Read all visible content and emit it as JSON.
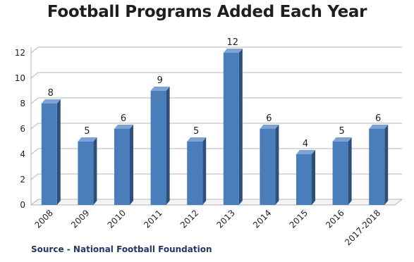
{
  "title": "Football Programs Added Each Year",
  "source": "Source - National Football Foundation",
  "colors": {
    "bar_front": "#4a7ebb",
    "bar_side": "#2c4f7c",
    "bar_top": "#7da2d3",
    "grid": "#b5b5b5",
    "text": "#1f1f1f"
  },
  "chart_data": {
    "type": "bar",
    "title": "Football Programs Added Each Year",
    "categories": [
      "2008",
      "2009",
      "2010",
      "2011",
      "2012",
      "2013",
      "2014",
      "2015",
      "2016",
      "2017-2018"
    ],
    "values": [
      8,
      5,
      6,
      9,
      5,
      12,
      6,
      4,
      5,
      6
    ],
    "ylim": [
      0,
      12
    ],
    "yticks": [
      0,
      2,
      4,
      6,
      8,
      10,
      12
    ],
    "grid": true,
    "legend": "none",
    "style": "3d-columns"
  }
}
